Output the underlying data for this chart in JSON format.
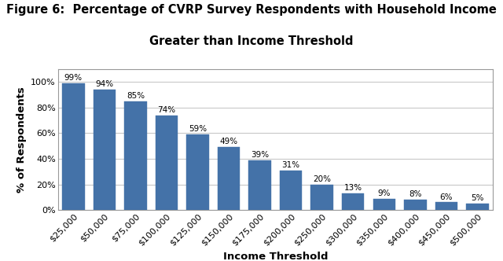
{
  "title_line1": "Figure 6:  Percentage of CVRP Survey Respondents with Household Income",
  "title_line2": "Greater than Income Threshold",
  "xlabel": "Income Threshold",
  "ylabel": "% of Respondents",
  "categories": [
    "$25,000",
    "$50,000",
    "$75,000",
    "$100,000",
    "$125,000",
    "$150,000",
    "$175,000",
    "$200,000",
    "$250,000",
    "$300,000",
    "$350,000",
    "$400,000",
    "$450,000",
    "$500,000"
  ],
  "values": [
    99,
    94,
    85,
    74,
    59,
    49,
    39,
    31,
    20,
    13,
    9,
    8,
    6,
    5
  ],
  "bar_color": "#4472a8",
  "bar_edge_color": "#4472a8",
  "ylim": [
    0,
    110
  ],
  "yticks": [
    0,
    20,
    40,
    60,
    80,
    100
  ],
  "ytick_labels": [
    "0%",
    "20%",
    "40%",
    "60%",
    "80%",
    "100%"
  ],
  "background_color": "#ffffff",
  "grid_color": "#c8c8c8",
  "title_fontsize": 10.5,
  "axis_label_fontsize": 9.5,
  "tick_fontsize": 8,
  "bar_label_fontsize": 7.5
}
